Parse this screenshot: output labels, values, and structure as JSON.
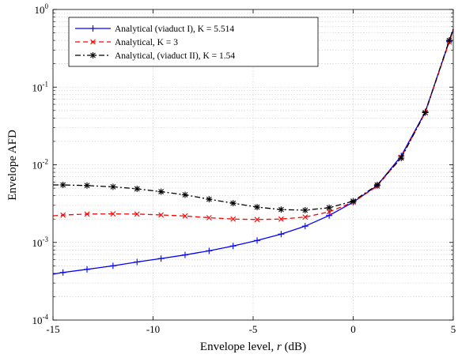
{
  "chart_data": {
    "type": "line",
    "title": "",
    "xlabel": "Envelope level, ",
    "xlabel_var": "r",
    "xlabel_unit": " (dB)",
    "ylabel": "Envelope AFD",
    "xlim": [
      -15,
      5
    ],
    "ylim": [
      0.0001,
      1
    ],
    "yscale": "log",
    "grid": true,
    "legend_position": "top-left",
    "x_ticks": [
      -15,
      -10,
      -5,
      0,
      5
    ],
    "y_ticks": [
      {
        "base": "10",
        "exp": "-4",
        "value": 0.0001
      },
      {
        "base": "10",
        "exp": "-3",
        "value": 0.001
      },
      {
        "base": "10",
        "exp": "-2",
        "value": 0.01
      },
      {
        "base": "10",
        "exp": "-1",
        "value": 0.1
      },
      {
        "base": "10",
        "exp": "0",
        "value": 1
      }
    ],
    "series": [
      {
        "name": "Analytical (viaduct I), K = 5.514",
        "color": "#0000ff",
        "line": "solid",
        "marker": "plus",
        "line_x": [
          -15,
          -14.5,
          -13.3,
          -12.0,
          -10.8,
          -9.6,
          -8.4,
          -7.2,
          -6.0,
          -4.8,
          -3.6,
          -2.4,
          -1.2,
          0,
          1.2,
          2.4,
          3.6,
          4.8,
          5
        ],
        "line_y": [
          0.00039,
          0.00041,
          0.00045,
          0.0005,
          0.00056,
          0.00062,
          0.00069,
          0.00078,
          0.0009,
          0.00106,
          0.00128,
          0.00162,
          0.00222,
          0.0033,
          0.0054,
          0.013,
          0.048,
          0.39,
          0.55
        ],
        "marker_x": [
          -14.5,
          -13.3,
          -12.0,
          -10.8,
          -9.6,
          -8.4,
          -7.2,
          -6.0,
          -4.8,
          -3.6,
          -2.4,
          -1.2,
          0,
          1.2,
          2.4,
          3.6,
          4.8
        ],
        "marker_y": [
          0.00041,
          0.00045,
          0.0005,
          0.00056,
          0.00062,
          0.00069,
          0.00078,
          0.0009,
          0.00106,
          0.00128,
          0.00162,
          0.00222,
          0.0033,
          0.0054,
          0.013,
          0.048,
          0.39
        ]
      },
      {
        "name": "Analytical, K = 3",
        "color": "#ff0000",
        "line": "dashed",
        "marker": "x",
        "line_x": [
          -15,
          -14.5,
          -13.3,
          -12.0,
          -10.8,
          -9.6,
          -8.4,
          -7.2,
          -6.0,
          -4.8,
          -3.6,
          -2.4,
          -1.2,
          0,
          1.2,
          2.4,
          3.6,
          4.8,
          5
        ],
        "line_y": [
          0.0022,
          0.00225,
          0.00232,
          0.00233,
          0.00232,
          0.00226,
          0.00219,
          0.00208,
          0.002,
          0.00197,
          0.002,
          0.00212,
          0.00248,
          0.0033,
          0.0053,
          0.0125,
          0.047,
          0.38,
          0.55
        ],
        "marker_x": [
          -14.5,
          -13.3,
          -12.0,
          -10.8,
          -9.6,
          -8.4,
          -7.2,
          -6.0,
          -4.8,
          -3.6,
          -2.4,
          -1.2,
          0,
          1.2,
          2.4,
          3.6,
          4.8
        ],
        "marker_y": [
          0.00225,
          0.00232,
          0.00233,
          0.00232,
          0.00226,
          0.00219,
          0.00208,
          0.002,
          0.00197,
          0.002,
          0.00212,
          0.00248,
          0.0033,
          0.0053,
          0.0125,
          0.047,
          0.38
        ]
      },
      {
        "name": "Analytical, (viaduct II), K = 1.54",
        "color": "#000000",
        "line": "dashdot",
        "marker": "star",
        "line_x": [
          -15,
          -14.5,
          -13.3,
          -12.0,
          -10.8,
          -9.6,
          -8.4,
          -7.2,
          -6.0,
          -4.8,
          -3.6,
          -2.4,
          -1.2,
          0,
          1.2,
          2.4,
          3.6,
          4.8,
          5
        ],
        "line_y": [
          0.0055,
          0.0055,
          0.0054,
          0.0052,
          0.0049,
          0.0045,
          0.0041,
          0.0036,
          0.0032,
          0.00285,
          0.00265,
          0.0026,
          0.0028,
          0.0034,
          0.0055,
          0.0122,
          0.047,
          0.4,
          0.56
        ],
        "marker_x": [
          -14.5,
          -13.3,
          -12.0,
          -10.8,
          -9.6,
          -8.4,
          -7.2,
          -6.0,
          -4.8,
          -3.6,
          -2.4,
          -1.2,
          0,
          1.2,
          2.4,
          3.6,
          4.8
        ],
        "marker_y": [
          0.0055,
          0.0054,
          0.0052,
          0.0049,
          0.0045,
          0.0041,
          0.0036,
          0.0032,
          0.00285,
          0.00265,
          0.0026,
          0.0028,
          0.0034,
          0.0055,
          0.0122,
          0.047,
          0.4
        ]
      }
    ]
  }
}
